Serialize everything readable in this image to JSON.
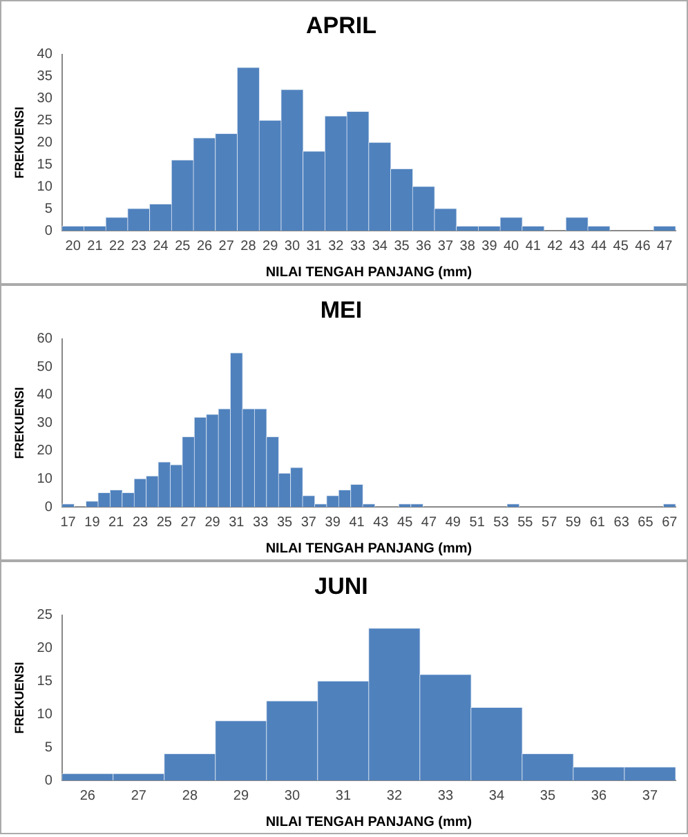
{
  "chart_data": [
    {
      "type": "bar",
      "title": "APRIL",
      "xlabel": "NILAI TENGAH PANJANG (mm)",
      "ylabel": "FREKUENSI",
      "categories": [
        "20",
        "21",
        "22",
        "23",
        "24",
        "25",
        "26",
        "27",
        "28",
        "29",
        "30",
        "31",
        "32",
        "33",
        "34",
        "35",
        "36",
        "37",
        "38",
        "39",
        "40",
        "41",
        "42",
        "43",
        "44",
        "45",
        "46",
        "47"
      ],
      "values": [
        1,
        1,
        3,
        5,
        6,
        16,
        21,
        22,
        37,
        25,
        32,
        18,
        26,
        27,
        20,
        14,
        10,
        5,
        1,
        1,
        3,
        1,
        0,
        3,
        1,
        0,
        0,
        1
      ],
      "color": "#4f81bd",
      "ylim": [
        0,
        40
      ],
      "yticks": [
        0,
        5,
        10,
        15,
        20,
        25,
        30,
        35,
        40
      ],
      "grid": false,
      "legend": false
    },
    {
      "type": "bar",
      "title": "MEI",
      "xlabel": "NILAI TENGAH PANJANG (mm)",
      "ylabel": "FREKUENSI",
      "categories": [
        "17",
        null,
        "19",
        null,
        "21",
        null,
        "23",
        null,
        "25",
        null,
        "27",
        null,
        "29",
        null,
        "31",
        null,
        "33",
        null,
        "35",
        null,
        "37",
        null,
        "39",
        null,
        "41",
        null,
        "43",
        null,
        "45",
        null,
        "47",
        null,
        "49",
        null,
        "51",
        null,
        "53",
        null,
        "55",
        null,
        "57",
        null,
        "59",
        null,
        "61",
        null,
        "63",
        null,
        "65",
        null,
        "67"
      ],
      "values": [
        1,
        0,
        2,
        5,
        6,
        5,
        10,
        11,
        16,
        15,
        25,
        32,
        33,
        35,
        55,
        35,
        35,
        25,
        12,
        14,
        4,
        1,
        4,
        6,
        8,
        1,
        0,
        0,
        1,
        1,
        0,
        0,
        0,
        0,
        0,
        0,
        0,
        1,
        0,
        0,
        0,
        0,
        0,
        0,
        0,
        0,
        0,
        0,
        0,
        0,
        1
      ],
      "color": "#4f81bd",
      "ylim": [
        0,
        60
      ],
      "yticks": [
        0,
        10,
        20,
        30,
        40,
        50,
        60
      ],
      "grid": false,
      "legend": false
    },
    {
      "type": "bar",
      "title": "JUNI",
      "xlabel": "NILAI TENGAH PANJANG (mm)",
      "ylabel": "FREKUENSI",
      "categories": [
        "26",
        "27",
        "28",
        "29",
        "30",
        "31",
        "32",
        "33",
        "34",
        "35",
        "36",
        "37"
      ],
      "values": [
        1,
        1,
        4,
        9,
        12,
        15,
        23,
        16,
        11,
        4,
        2,
        2
      ],
      "color": "#4f81bd",
      "ylim": [
        0,
        25
      ],
      "yticks": [
        0,
        5,
        10,
        15,
        20,
        25
      ],
      "grid": false,
      "legend": false
    }
  ]
}
